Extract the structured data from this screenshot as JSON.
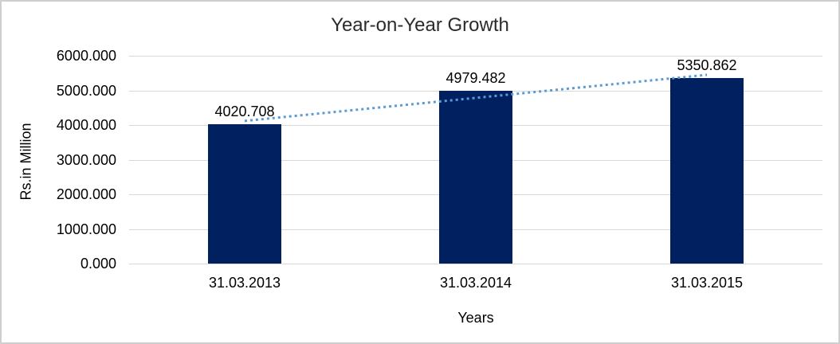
{
  "chart": {
    "title": "Year-on-Year Growth",
    "y_axis_title": "Rs.in Million",
    "x_axis_title": "Years"
  },
  "chart_data": {
    "type": "bar",
    "title": "Year-on-Year Growth",
    "xlabel": "Years",
    "ylabel": "Rs.in Million",
    "categories": [
      "31.03.2013",
      "31.03.2014",
      "31.03.2015"
    ],
    "values": [
      4020.708,
      4979.482,
      5350.862
    ],
    "data_labels": [
      "4020.708",
      "4979.482",
      "5350.862"
    ],
    "ylim": [
      0,
      6000
    ],
    "ytick_step": 1000,
    "ytick_labels": [
      "0.000",
      "1000.000",
      "2000.000",
      "3000.000",
      "4000.000",
      "5000.000",
      "6000.000"
    ],
    "grid": true,
    "legend": false,
    "trendline": {
      "type": "linear",
      "style": "dotted"
    },
    "colors": {
      "bar": "#002060",
      "trendline": "#5b9bd5",
      "gridline": "#d9d9d9",
      "title_text": "#2b2b2b",
      "label_text": "#000000",
      "frame_border": "#cfcfcf"
    }
  }
}
